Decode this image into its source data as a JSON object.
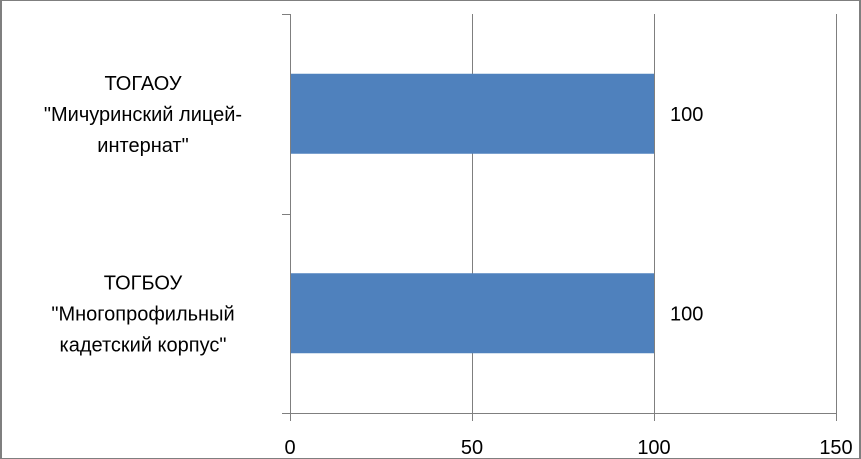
{
  "chart_data": {
    "type": "bar",
    "orientation": "horizontal",
    "categories": [
      [
        "ТОГАОУ",
        "\"Мичуринский лицей-",
        "интернат\""
      ],
      [
        "ТОГБОУ",
        "\"Многопрофильный",
        "кадетский корпус\""
      ]
    ],
    "values": [
      100,
      100
    ],
    "data_labels": [
      "100",
      "100"
    ],
    "xlim": [
      0,
      150
    ],
    "xticks": [
      0,
      50,
      100,
      150
    ],
    "xtick_labels": [
      "0",
      "50",
      "100",
      "150"
    ],
    "grid": "vertical",
    "legend": "none",
    "bar_color": "#4f81bd",
    "frame_color": "#7f7f7f",
    "grid_color": "#7f7f7f"
  }
}
